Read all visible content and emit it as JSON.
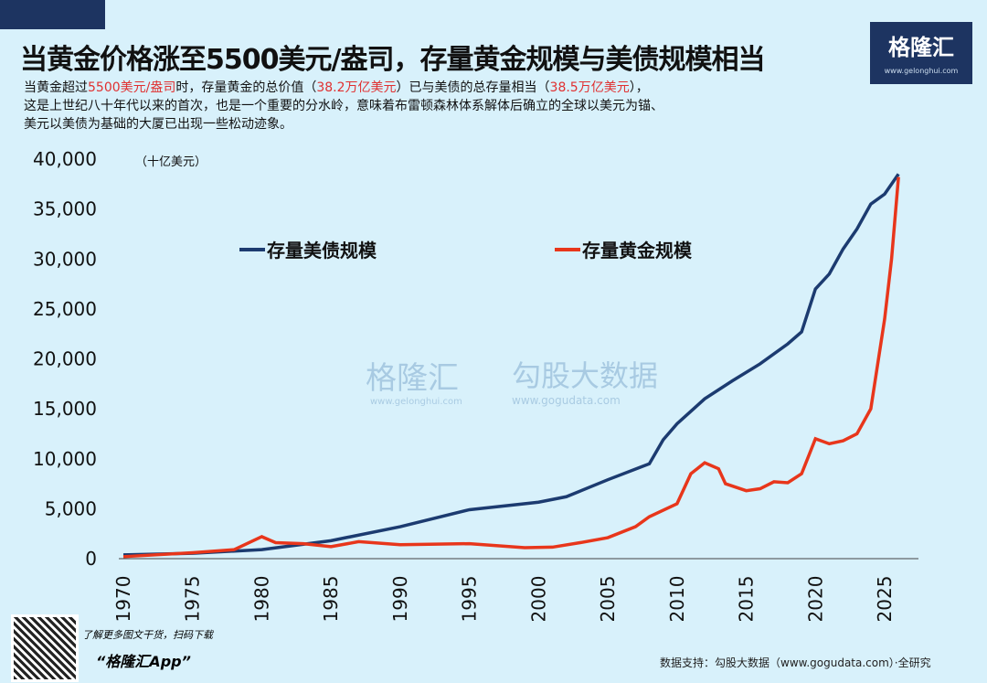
{
  "title": "当黄金价格涨至5500美元/盎司，存量黄金规模与美债规模相当",
  "logo": {
    "name": "格隆汇",
    "url": "www.gelonghui.com"
  },
  "desc": {
    "p1": "当黄金超过",
    "r1": "5500美元/盎司",
    "p2": "时，存量黄金的总价值（",
    "r2": "38.2万亿美元",
    "p3": "）已与美债的总存量相当（",
    "r3": "38.5万亿美元",
    "p4": "），",
    "line2": "这是上世纪八十年代以来的首次，也是一个重要的分水岭，意味着布雷顿森林体系解体后确立的全球以美元为锚、",
    "line3": "美元以美债为基础的大厦已出现一些松动迹象。"
  },
  "watermark": {
    "left": "格隆汇",
    "left_url": "www.gelonghui.com",
    "right": "勾股大数据",
    "right_url": "www.gogudata.com"
  },
  "footer": {
    "promo": "了解更多图文干货，扫码下载",
    "app": "“格隆汇App”",
    "source": "数据支持：勾股大数据（www.gogudata.com）·全研究"
  },
  "chart_data": {
    "type": "line",
    "unit": "（十亿美元）",
    "ylim": [
      0,
      40000
    ],
    "yticks": [
      "0",
      "5,000",
      "10,000",
      "15,000",
      "20,000",
      "25,000",
      "30,000",
      "35,000",
      "40,000"
    ],
    "xticks": [
      "1970",
      "1975",
      "1980",
      "1985",
      "1990",
      "1995",
      "2000",
      "2005",
      "2010",
      "2015",
      "2020",
      "2025"
    ],
    "legend_position": "top-left",
    "series": [
      {
        "name": "存量美债规模",
        "color": "#1c3b70",
        "x": [
          1970,
          1975,
          1980,
          1985,
          1990,
          1995,
          2000,
          2002,
          2005,
          2008,
          2009,
          2010,
          2012,
          2014,
          2016,
          2018,
          2019,
          2020,
          2021,
          2022,
          2023,
          2024,
          2025,
          2026
        ],
        "y": [
          380,
          540,
          900,
          1800,
          3200,
          4900,
          5650,
          6200,
          7900,
          9500,
          11900,
          13500,
          16000,
          17800,
          19500,
          21500,
          22700,
          27000,
          28500,
          31000,
          33000,
          35500,
          36500,
          38500
        ]
      },
      {
        "name": "存量黄金规模",
        "color": "#e8361b",
        "x": [
          1970,
          1975,
          1978,
          1980,
          1981,
          1983,
          1985,
          1987,
          1990,
          1995,
          1999,
          2001,
          2003,
          2005,
          2007,
          2008,
          2010,
          2011,
          2012,
          2013,
          2013.5,
          2015,
          2016,
          2017,
          2018,
          2019,
          2020,
          2021,
          2022,
          2023,
          2024,
          2025,
          2025.5,
          2026
        ],
        "y": [
          200,
          600,
          900,
          2200,
          1600,
          1500,
          1200,
          1700,
          1400,
          1500,
          1100,
          1150,
          1600,
          2100,
          3200,
          4200,
          5500,
          8500,
          9600,
          9000,
          7500,
          6800,
          7000,
          7700,
          7600,
          8500,
          12000,
          11500,
          11800,
          12500,
          15000,
          24000,
          30000,
          38200
        ]
      }
    ]
  }
}
